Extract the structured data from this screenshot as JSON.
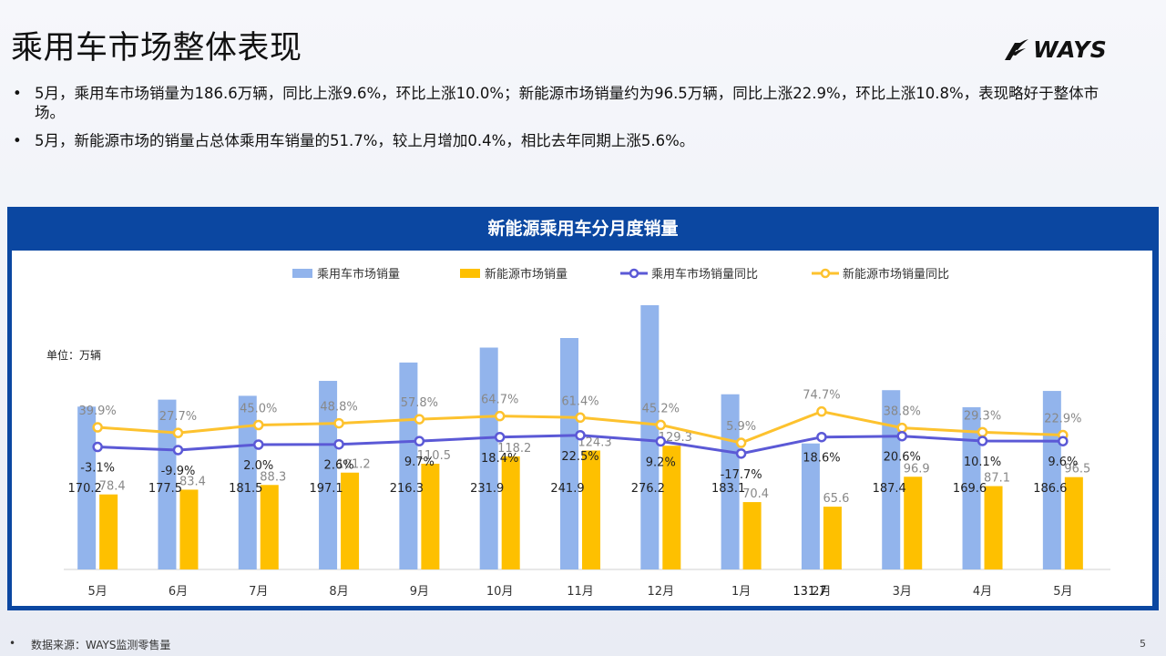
{
  "page": {
    "title": "乘用车市场整体表现",
    "logo_text": "WAYS",
    "bullets": [
      "5月，乘用车市场销量为186.6万辆，同比上涨9.6%，环比上涨10.0%；新能源市场销量约为96.5万辆，同比上涨22.9%，环比上涨10.8%，表现略好于整体市场。",
      "5月，新能源市场的销量占总体乘用车销量的51.7%，较上月增加0.4%，相比去年同期上涨5.6%。"
    ],
    "bullet_symbol": "•",
    "footer_source": "数据来源：WAYS监测零售量",
    "page_number": "5"
  },
  "chart_data": {
    "type": "bar",
    "title": "新能源乘用车分月度销量",
    "unit_label": "单位：万辆",
    "categories": [
      "5月",
      "6月",
      "7月",
      "8月",
      "9月",
      "10月",
      "11月",
      "12月",
      "1月",
      "2月",
      "3月",
      "4月",
      "5月"
    ],
    "category_overlay_label": "131.7",
    "series": [
      {
        "name": "乘用车市场销量",
        "kind": "bar",
        "color": "#92b4ec",
        "values": [
          170.2,
          177.5,
          181.5,
          197.1,
          216.3,
          231.9,
          241.9,
          276.2,
          183.1,
          131.7,
          187.4,
          169.6,
          186.6
        ],
        "labels": [
          "170.2",
          "177.5",
          "181.5",
          "197.1",
          "216.3",
          "231.9",
          "241.9",
          "276.2",
          "183.1",
          "",
          "187.4",
          "169.6",
          "186.6"
        ]
      },
      {
        "name": "新能源市场销量",
        "kind": "bar",
        "color": "#fec000",
        "values": [
          78.4,
          83.4,
          88.3,
          101.2,
          110.5,
          118.2,
          124.3,
          129.3,
          70.4,
          65.6,
          96.9,
          87.1,
          96.5
        ],
        "labels": [
          "78.4",
          "83.4",
          "88.3",
          "101.2",
          "110.5",
          "118.2",
          "124.3",
          "129.3",
          "70.4",
          "65.6",
          "96.9",
          "87.1",
          "96.5"
        ]
      },
      {
        "name": "乘用车市场销量同比",
        "kind": "line",
        "color": "#5b59d6",
        "values": [
          -3.1,
          -9.9,
          2.0,
          2.6,
          9.7,
          18.4,
          22.5,
          9.2,
          -17.7,
          18.6,
          20.6,
          10.1,
          9.6
        ],
        "labels": [
          "-3.1%",
          "-9.9%",
          "2.0%",
          "2.6%",
          "9.7%",
          "18.4%",
          "22.5%",
          "9.2%",
          "-17.7%",
          "18.6%",
          "20.6%",
          "10.1%",
          "9.6%"
        ]
      },
      {
        "name": "新能源市场销量同比",
        "kind": "line",
        "color": "#fdc22e",
        "values": [
          39.9,
          27.7,
          45.0,
          48.8,
          57.8,
          64.7,
          61.4,
          45.2,
          5.9,
          74.7,
          38.8,
          29.3,
          22.9
        ],
        "labels": [
          "39.9%",
          "27.7%",
          "45.0%",
          "48.8%",
          "57.8%",
          "64.7%",
          "61.4%",
          "45.2%",
          "5.9%",
          "74.7%",
          "38.8%",
          "29.3%",
          "22.9%"
        ]
      }
    ],
    "legend_position": "top",
    "grid": false
  }
}
